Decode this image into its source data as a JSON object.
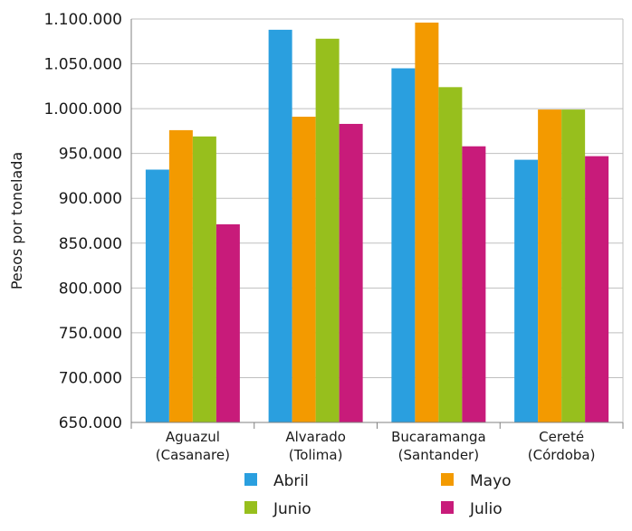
{
  "chart_data": {
    "type": "bar",
    "ylabel": "Pesos por tonelada",
    "xlabel": "",
    "ylim": [
      650000,
      1100000
    ],
    "yticks": [
      650000,
      700000,
      750000,
      800000,
      850000,
      900000,
      950000,
      1000000,
      1050000,
      1100000
    ],
    "ytick_labels": [
      "650.000",
      "700.000",
      "750.000",
      "800.000",
      "850.000",
      "900.000",
      "950.000",
      "1.000.000",
      "1.050.000",
      "1.100.000"
    ],
    "categories": [
      [
        "Aguazul",
        "(Casanare)"
      ],
      [
        "Alvarado",
        "(Tolima)"
      ],
      [
        "Bucaramanga",
        "(Santander)"
      ],
      [
        "Cereté",
        "(Córdoba)"
      ]
    ],
    "series": [
      {
        "name": "Abril",
        "color": "#2a9fdf",
        "values": [
          932000,
          1088000,
          1045000,
          943000
        ]
      },
      {
        "name": "Mayo",
        "color": "#f39a00",
        "values": [
          976000,
          991000,
          1096000,
          999000
        ]
      },
      {
        "name": "Junio",
        "color": "#97bf1d",
        "values": [
          969000,
          1078000,
          1024000,
          999000
        ]
      },
      {
        "name": "Julio",
        "color": "#c81b7a",
        "values": [
          871000,
          983000,
          958000,
          947000
        ]
      }
    ],
    "grid": true,
    "legend_position": "bottom"
  }
}
